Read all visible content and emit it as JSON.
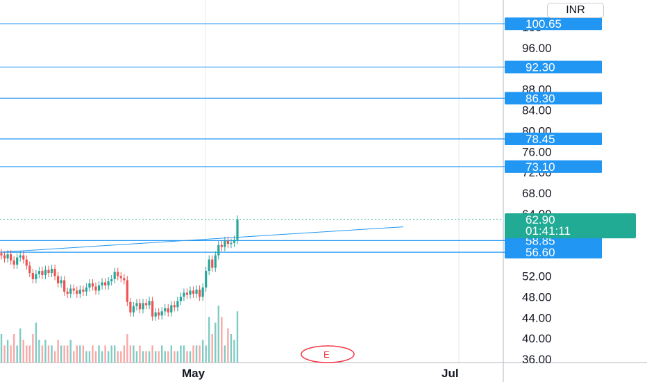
{
  "currency": "INR",
  "colors": {
    "level": "#2196f3",
    "up": "#26a69a",
    "down": "#ef5350",
    "volume_up": "#80cbc4",
    "volume_down": "#f7a9a7",
    "grid": "#e6e8ec",
    "current": "#22ab94"
  },
  "chart_data": {
    "type": "candlestick",
    "x_tick_labels": [
      "May",
      "Jul"
    ],
    "y_tick_labels": [
      "100",
      "96.00",
      "88.00",
      "84.00",
      "80.00",
      "76.00",
      "72.00",
      "68.00",
      "64.00",
      "52.00",
      "48.00",
      "44.00",
      "40.00",
      "36.00"
    ],
    "ylim": [
      35.5,
      101.5
    ],
    "levels": [
      {
        "value": 100.65,
        "label": "100.65"
      },
      {
        "value": 92.3,
        "label": "92.30"
      },
      {
        "value": 86.3,
        "label": "86.30"
      },
      {
        "value": 78.45,
        "label": "78.45"
      },
      {
        "value": 73.1,
        "label": "73.10"
      },
      {
        "value": 58.85,
        "label": "58.85"
      },
      {
        "value": 56.6,
        "label": "56.60"
      }
    ],
    "current_price": {
      "value": 62.9,
      "label": "62.90",
      "countdown": "01:41:11"
    },
    "trendline": {
      "from": 56.6,
      "to": 61.5
    },
    "event_marker": "E",
    "close_prices": [
      56.0,
      55.4,
      56.2,
      55.0,
      54.2,
      55.6,
      56.0,
      55.2,
      54.0,
      52.6,
      51.4,
      52.4,
      53.0,
      52.2,
      53.2,
      52.6,
      53.4,
      52.0,
      50.6,
      51.2,
      49.0,
      48.6,
      49.6,
      49.2,
      48.6,
      49.4,
      49.0,
      49.8,
      50.6,
      50.0,
      49.2,
      50.2,
      50.8,
      50.2,
      51.0,
      51.4,
      52.8,
      52.0,
      51.6,
      51.2,
      47.0,
      45.0,
      46.2,
      46.8,
      45.6,
      46.8,
      46.4,
      47.2,
      44.2,
      45.0,
      44.4,
      45.2,
      45.8,
      45.0,
      46.4,
      46.0,
      47.2,
      48.0,
      48.8,
      48.4,
      49.2,
      48.6,
      49.4,
      48.0,
      49.8,
      53.0,
      55.2,
      53.6,
      56.0,
      58.0,
      57.6,
      58.8,
      58.2,
      58.4,
      59.0,
      62.9
    ],
    "volumes": [
      0.5,
      0.3,
      0.4,
      0.3,
      0.5,
      0.3,
      0.6,
      0.4,
      0.3,
      0.3,
      0.5,
      0.7,
      0.4,
      0.3,
      0.4,
      0.3,
      0.3,
      0.2,
      0.4,
      0.3,
      0.3,
      0.3,
      0.4,
      0.2,
      0.3,
      0.3,
      0.3,
      0.2,
      0.2,
      0.3,
      0.2,
      0.3,
      0.2,
      0.3,
      0.2,
      0.3,
      0.3,
      0.2,
      0.2,
      0.3,
      0.5,
      0.3,
      0.3,
      0.2,
      0.3,
      0.2,
      0.2,
      0.2,
      0.3,
      0.2,
      0.2,
      0.3,
      0.2,
      0.2,
      0.3,
      0.2,
      0.2,
      0.3,
      0.3,
      0.2,
      0.2,
      0.3,
      0.3,
      0.3,
      0.4,
      0.3,
      0.8,
      0.5,
      0.7,
      1.0,
      0.8,
      0.3,
      0.6,
      0.5,
      0.4,
      0.9
    ]
  }
}
